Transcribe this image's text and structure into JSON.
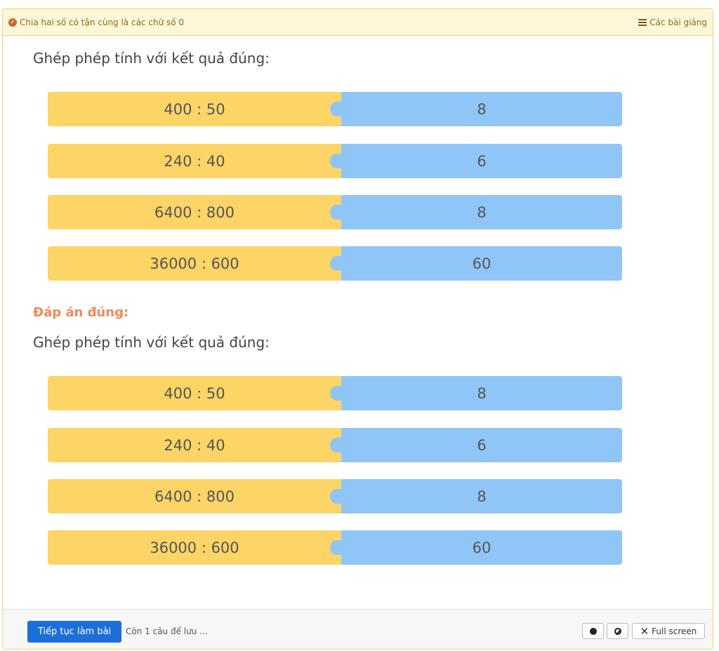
{
  "header": {
    "lesson_title": "Chia hai số có tận cùng là các chữ số 0",
    "lessons_link": "Các bài giảng"
  },
  "question": {
    "prompt": "Ghép phép tính với kết quả đúng:",
    "pairs": [
      {
        "expression": "400 : 50",
        "result": "8"
      },
      {
        "expression": "240 : 40",
        "result": "6"
      },
      {
        "expression": "6400 : 800",
        "result": "8"
      },
      {
        "expression": "36000 : 600",
        "result": "60"
      }
    ]
  },
  "answer": {
    "label": "Đáp án đúng:",
    "prompt": "Ghép phép tính với kết quả đúng:",
    "pairs": [
      {
        "expression": "400 : 50",
        "result": "8"
      },
      {
        "expression": "240 : 40",
        "result": "6"
      },
      {
        "expression": "6400 : 800",
        "result": "8"
      },
      {
        "expression": "36000 : 600",
        "result": "60"
      }
    ]
  },
  "footer": {
    "continue_label": "Tiếp tục làm bài",
    "remaining_text": "Còn 1 câu để lưu ...",
    "fullscreen_label": "Full screen"
  },
  "colors": {
    "expression_tile": "#fdd466",
    "result_tile": "#90c6f7",
    "answer_label": "#f08a5d",
    "primary_button": "#1d6fd8"
  }
}
